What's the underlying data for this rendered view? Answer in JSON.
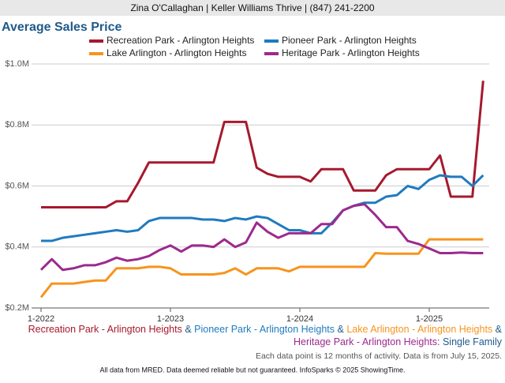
{
  "header": "Zina O'Callaghan | Keller Williams Thrive | (847) 241-2200",
  "chart_data": {
    "type": "line",
    "title": "Average Sales Price",
    "categories": [
      "1-2022",
      null,
      null,
      null,
      null,
      null,
      null,
      null,
      null,
      null,
      null,
      null,
      "1-2023",
      null,
      null,
      null,
      null,
      null,
      null,
      null,
      null,
      null,
      null,
      null,
      "1-2024",
      null,
      null,
      null,
      null,
      null,
      null,
      null,
      null,
      null,
      null,
      null,
      "1-2025",
      null,
      null,
      null,
      null,
      null
    ],
    "ylim": [
      200000,
      1000000
    ],
    "yticks": [
      {
        "value": 200000,
        "label": "$0.2M"
      },
      {
        "value": 400000,
        "label": "$0.4M"
      },
      {
        "value": 600000,
        "label": "$0.6M"
      },
      {
        "value": 800000,
        "label": "$0.8M"
      },
      {
        "value": 1000000,
        "label": "$1.0M"
      }
    ],
    "grid": true,
    "series": [
      {
        "name": "Recreation Park - Arlington Heights",
        "color": "#a6192e",
        "values": [
          530000,
          530000,
          530000,
          530000,
          530000,
          530000,
          530000,
          550000,
          550000,
          610000,
          677000,
          677000,
          677000,
          677000,
          677000,
          677000,
          677000,
          810000,
          810000,
          810000,
          660000,
          640000,
          630000,
          630000,
          630000,
          615000,
          655000,
          655000,
          655000,
          585000,
          585000,
          585000,
          635000,
          655000,
          655000,
          655000,
          655000,
          700000,
          565000,
          565000,
          565000,
          945000
        ]
      },
      {
        "name": "Pioneer Park - Arlington Heights",
        "color": "#1f7bbf",
        "values": [
          420000,
          420000,
          430000,
          435000,
          440000,
          445000,
          450000,
          455000,
          450000,
          455000,
          485000,
          495000,
          495000,
          495000,
          495000,
          490000,
          490000,
          485000,
          495000,
          490000,
          500000,
          495000,
          475000,
          455000,
          455000,
          445000,
          445000,
          480000,
          520000,
          535000,
          545000,
          545000,
          565000,
          570000,
          600000,
          590000,
          620000,
          635000,
          630000,
          630000,
          600000,
          635000
        ]
      },
      {
        "name": "Lake Arlington - Arlington Heights",
        "color": "#f7941d",
        "values": [
          235000,
          280000,
          280000,
          280000,
          285000,
          290000,
          290000,
          330000,
          330000,
          330000,
          335000,
          335000,
          330000,
          310000,
          310000,
          310000,
          310000,
          315000,
          330000,
          310000,
          330000,
          330000,
          330000,
          320000,
          335000,
          335000,
          335000,
          335000,
          335000,
          335000,
          335000,
          380000,
          378000,
          378000,
          378000,
          378000,
          425000,
          425000,
          425000,
          425000,
          425000,
          425000
        ]
      },
      {
        "name": "Heritage Park - Arlington Heights",
        "color": "#9c2a8e",
        "values": [
          325000,
          360000,
          325000,
          330000,
          340000,
          340000,
          350000,
          365000,
          355000,
          360000,
          370000,
          390000,
          405000,
          385000,
          405000,
          405000,
          400000,
          425000,
          400000,
          415000,
          480000,
          450000,
          430000,
          445000,
          445000,
          445000,
          475000,
          475000,
          520000,
          535000,
          540000,
          505000,
          465000,
          465000,
          420000,
          410000,
          395000,
          380000,
          380000,
          382000,
          380000,
          380000
        ]
      }
    ],
    "caption_separator": "&",
    "caption_suffix": ": Single Family",
    "caption_suffix_color": "#1f5a8a",
    "note": "Each data point is 12 months of activity. Data is from July 15, 2025.",
    "footer": "All data from MRED. Data deemed reliable but not guaranteed. InfoSparks © 2025 ShowingTime."
  }
}
